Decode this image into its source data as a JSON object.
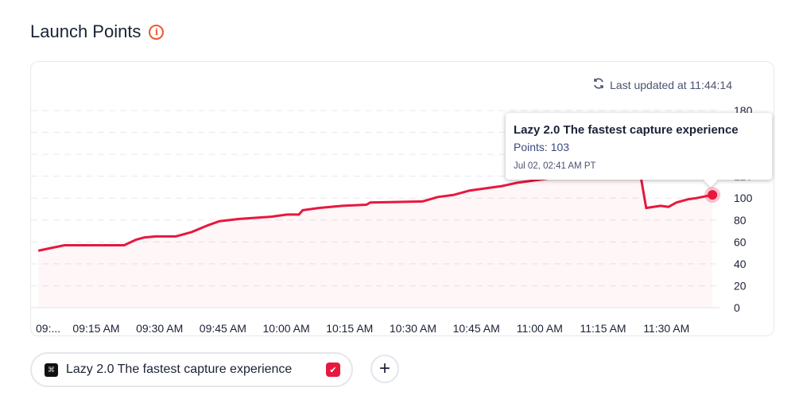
{
  "header": {
    "title": "Launch Points",
    "info_icon": "info-icon"
  },
  "status": {
    "last_updated": "Last updated at 11:44:14",
    "icon": "refresh-icon"
  },
  "tooltip": {
    "title": "Lazy 2.0 The fastest capture experience",
    "points": "Points: 103",
    "date": "Jul 02, 02:41 AM PT"
  },
  "legend_chip": {
    "label": "Lazy 2.0 The fastest capture experience",
    "checked": true,
    "icon": "product-logo-icon"
  },
  "add_button": {
    "icon": "plus-icon",
    "label": "+"
  },
  "colors": {
    "line": "#e8173f",
    "accent": "#f0552f"
  },
  "chart_data": {
    "type": "line",
    "title": "Launch Points",
    "xlabel": "",
    "ylabel": "",
    "ylim": [
      0,
      180
    ],
    "yticks": [
      "0",
      "20",
      "40",
      "60",
      "80",
      "100",
      "120",
      "140",
      "160",
      "180"
    ],
    "xticks": [
      {
        "t": 0,
        "label": "09:..."
      },
      {
        "t": 15,
        "label": "09:15 AM"
      },
      {
        "t": 30,
        "label": "09:30 AM"
      },
      {
        "t": 45,
        "label": "09:45 AM"
      },
      {
        "t": 60,
        "label": "10:00 AM"
      },
      {
        "t": 75,
        "label": "10:15 AM"
      },
      {
        "t": 90,
        "label": "10:30 AM"
      },
      {
        "t": 105,
        "label": "10:45 AM"
      },
      {
        "t": 120,
        "label": "11:00 AM"
      },
      {
        "t": 135,
        "label": "11:15 AM"
      },
      {
        "t": 150,
        "label": "11:30 AM"
      }
    ],
    "x_units": "minutes since 09:00 AM",
    "grid": true,
    "series": [
      {
        "name": "Lazy 2.0 The fastest capture experience",
        "x": [
          1.3,
          3.7,
          7.5,
          21.6,
          24.4,
          26.3,
          29.1,
          33.8,
          37.6,
          41.3,
          44.2,
          48.9,
          56.4,
          60.2,
          63,
          63.9,
          67.7,
          73.3,
          79,
          79.9,
          92.2,
          95.9,
          99.7,
          103.5,
          111,
          114.7,
          122.3,
          135,
          143,
          144,
          145.2,
          148.6,
          150.5,
          152.4,
          155.2,
          157.1,
          160.9
        ],
        "values": [
          52,
          54,
          57,
          57,
          62,
          64,
          65,
          65,
          69,
          75,
          79,
          81,
          83,
          85,
          85,
          89,
          91,
          93,
          94,
          96,
          97,
          101,
          103,
          107,
          111,
          114,
          118,
          122,
          126,
          118,
          91,
          93,
          92,
          96,
          99,
          100,
          103
        ]
      }
    ]
  }
}
